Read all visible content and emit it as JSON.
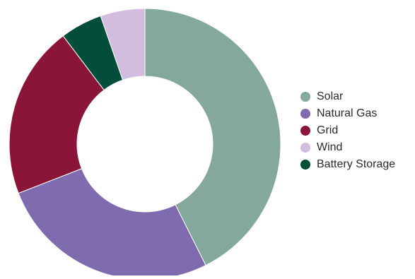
{
  "chart_data": {
    "type": "pie",
    "donut": true,
    "legend_position": "right",
    "start": "top, clockwise",
    "slices": [
      {
        "label": "Solar",
        "value": 42.6,
        "color": "#84a89a"
      },
      {
        "label": "Natural Gas",
        "value": 26.5,
        "color": "#7e6caf"
      },
      {
        "label": "Grid",
        "value": 20.6,
        "color": "#8a1538"
      },
      {
        "label": "Battery Storage",
        "value": 5.0,
        "color": "#024e3a"
      },
      {
        "label": "Wind",
        "value": 5.3,
        "color": "#d3bddf"
      }
    ],
    "legend_order": [
      "Solar",
      "Natural Gas",
      "Grid",
      "Wind",
      "Battery Storage"
    ]
  }
}
